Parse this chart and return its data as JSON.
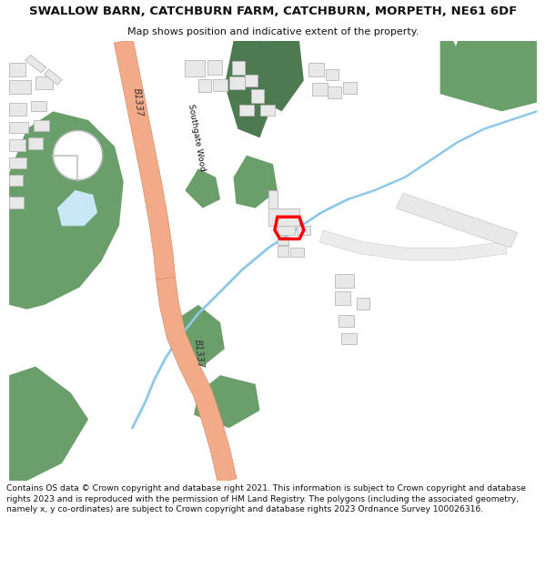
{
  "title": "SWALLOW BARN, CATCHBURN FARM, CATCHBURN, MORPETH, NE61 6DF",
  "subtitle": "Map shows position and indicative extent of the property.",
  "footer": "Contains OS data © Crown copyright and database right 2021. This information is subject to Crown copyright and database rights 2023 and is reproduced with the permission of HM Land Registry. The polygons (including the associated geometry, namely x, y co-ordinates) are subject to Crown copyright and database rights 2023 Ordnance Survey 100026316.",
  "bg_color": "#ffffff",
  "map_bg": "#ffffff",
  "road_color": "#f2aa88",
  "road_border": "#d4906e",
  "green_color": "#6a9e6a",
  "green_dark": "#4e7a52",
  "water_color": "#8ec8e8",
  "water_light": "#c8e8f8",
  "building_color": "#e8e8e8",
  "building_edge": "#b8b8b8",
  "plot_color": "#ff0000",
  "road_label_color": "#333333",
  "text_color": "#111111"
}
